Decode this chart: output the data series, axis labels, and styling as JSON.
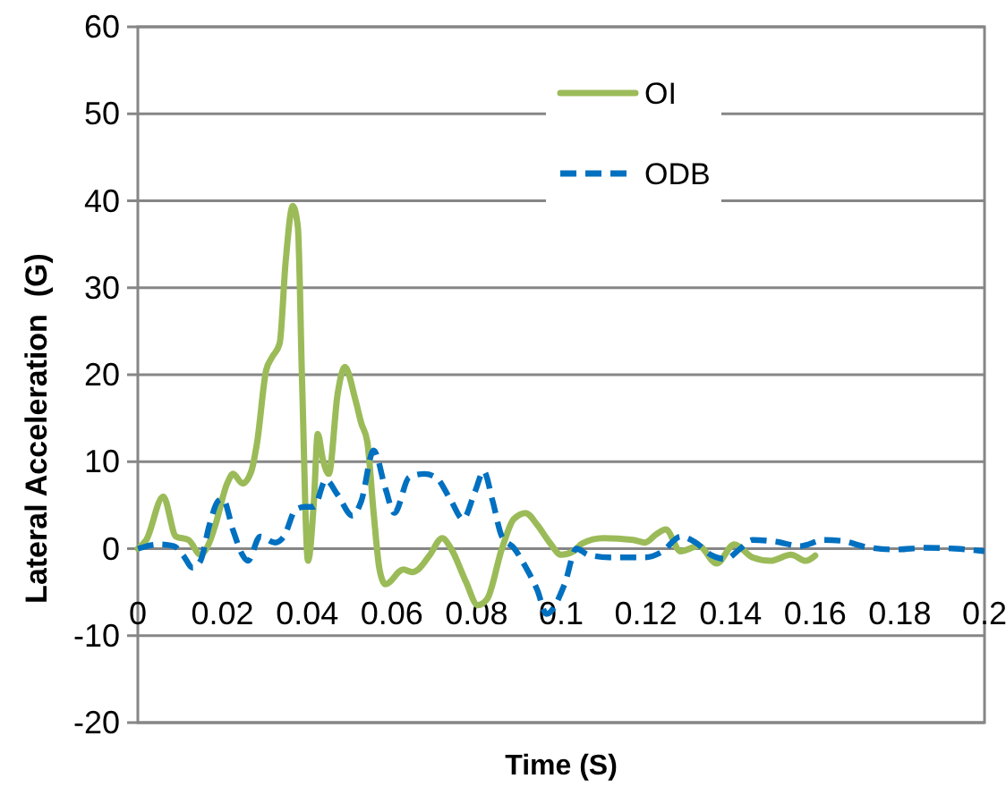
{
  "chart_data": {
    "type": "line",
    "xlabel": "Time (S)",
    "ylabel": "Lateral Acceleration  (G)",
    "xlim": [
      0,
      0.2
    ],
    "xticks": [
      0,
      0.02,
      0.04,
      0.06,
      0.08,
      0.1,
      0.12,
      0.14,
      0.16,
      0.18,
      0.2
    ],
    "ylim": [
      -20,
      60
    ],
    "yticks": [
      -20,
      -10,
      0,
      10,
      20,
      30,
      40,
      50,
      60
    ],
    "grid": "y",
    "legend": "top right",
    "series": [
      {
        "name": "OI",
        "color": "#9bbb59",
        "line_style": "solid",
        "x": [
          0,
          0.002,
          0.006,
          0.009,
          0.012,
          0.0148,
          0.0169,
          0.0183,
          0.0211,
          0.0225,
          0.0247,
          0.0268,
          0.0282,
          0.0303,
          0.0317,
          0.0335,
          0.0349,
          0.0366,
          0.0378,
          0.0388,
          0.0402,
          0.0416,
          0.0425,
          0.0437,
          0.0451,
          0.0472,
          0.0489,
          0.0514,
          0.0528,
          0.0542,
          0.0557,
          0.0571,
          0.0585,
          0.0627,
          0.0648,
          0.0662,
          0.069,
          0.0719,
          0.074,
          0.0775,
          0.0803,
          0.0825,
          0.086,
          0.0888,
          0.0916,
          0.0944,
          0.0973,
          0.1,
          0.1029,
          0.105,
          0.1099,
          0.117,
          0.1198,
          0.1226,
          0.1247,
          0.1282,
          0.1325,
          0.1367,
          0.1409,
          0.1452,
          0.1494,
          0.1543,
          0.1578,
          0.16
        ],
        "values": [
          0,
          1,
          6,
          1.4,
          1,
          -0.7,
          0.7,
          2.7,
          7.5,
          8.6,
          7.5,
          8.9,
          12.3,
          20.5,
          22,
          23.6,
          32.9,
          39.4,
          37,
          19.2,
          -1.4,
          5.5,
          13.2,
          10.3,
          8.6,
          17.8,
          20.9,
          17.1,
          14.4,
          12.3,
          4.1,
          -2.4,
          -4.1,
          -2.4,
          -2.7,
          -2.4,
          -0.7,
          1.2,
          0,
          -3.8,
          -6.5,
          -5.8,
          0,
          3.4,
          4.1,
          2.7,
          0.7,
          -0.7,
          -0.3,
          0.6,
          1.2,
          1,
          0.7,
          1.7,
          2.2,
          -0.3,
          0.3,
          -1.7,
          0.5,
          -1,
          -1.4,
          -0.7,
          -1.4,
          -0.8
        ]
      },
      {
        "name": "ODB",
        "color": "#0070c0",
        "line_style": "dashed",
        "x": [
          0,
          0.0049,
          0.0085,
          0.0106,
          0.013,
          0.0148,
          0.0169,
          0.019,
          0.0201,
          0.0225,
          0.0247,
          0.026,
          0.0289,
          0.0324,
          0.0345,
          0.0373,
          0.0394,
          0.0416,
          0.0444,
          0.0472,
          0.0507,
          0.0528,
          0.0557,
          0.0585,
          0.0606,
          0.0641,
          0.0677,
          0.0704,
          0.074,
          0.0768,
          0.0796,
          0.0817,
          0.0838,
          0.086,
          0.0888,
          0.0916,
          0.0944,
          0.0965,
          0.1008,
          0.1036,
          0.1064,
          0.1113,
          0.1198,
          0.124,
          0.1282,
          0.1318,
          0.1353,
          0.1388,
          0.1423,
          0.1452,
          0.1508,
          0.1564,
          0.1621,
          0.1663,
          0.1719,
          0.179,
          0.1861,
          0.1931,
          0.2
        ],
        "values": [
          0,
          0.5,
          0.3,
          -0.7,
          -2.2,
          -1.4,
          2.7,
          5.5,
          5.7,
          2.1,
          -0.7,
          -1.4,
          1.4,
          0.7,
          1.4,
          4.5,
          4.8,
          4.8,
          7.9,
          6.2,
          3.8,
          5.5,
          11.3,
          6.9,
          4.1,
          8.2,
          8.6,
          8.2,
          5.5,
          3.4,
          6.5,
          8.9,
          5.5,
          1.4,
          0.1,
          -2.1,
          -4.8,
          -7.5,
          -4.1,
          0,
          -0.7,
          -1,
          -1,
          -0.3,
          1.4,
          0.7,
          -0.7,
          -1.2,
          0,
          1,
          0.8,
          0.3,
          1,
          0.9,
          0.2,
          -0.1,
          0.1,
          0,
          -0.3
        ]
      }
    ]
  }
}
